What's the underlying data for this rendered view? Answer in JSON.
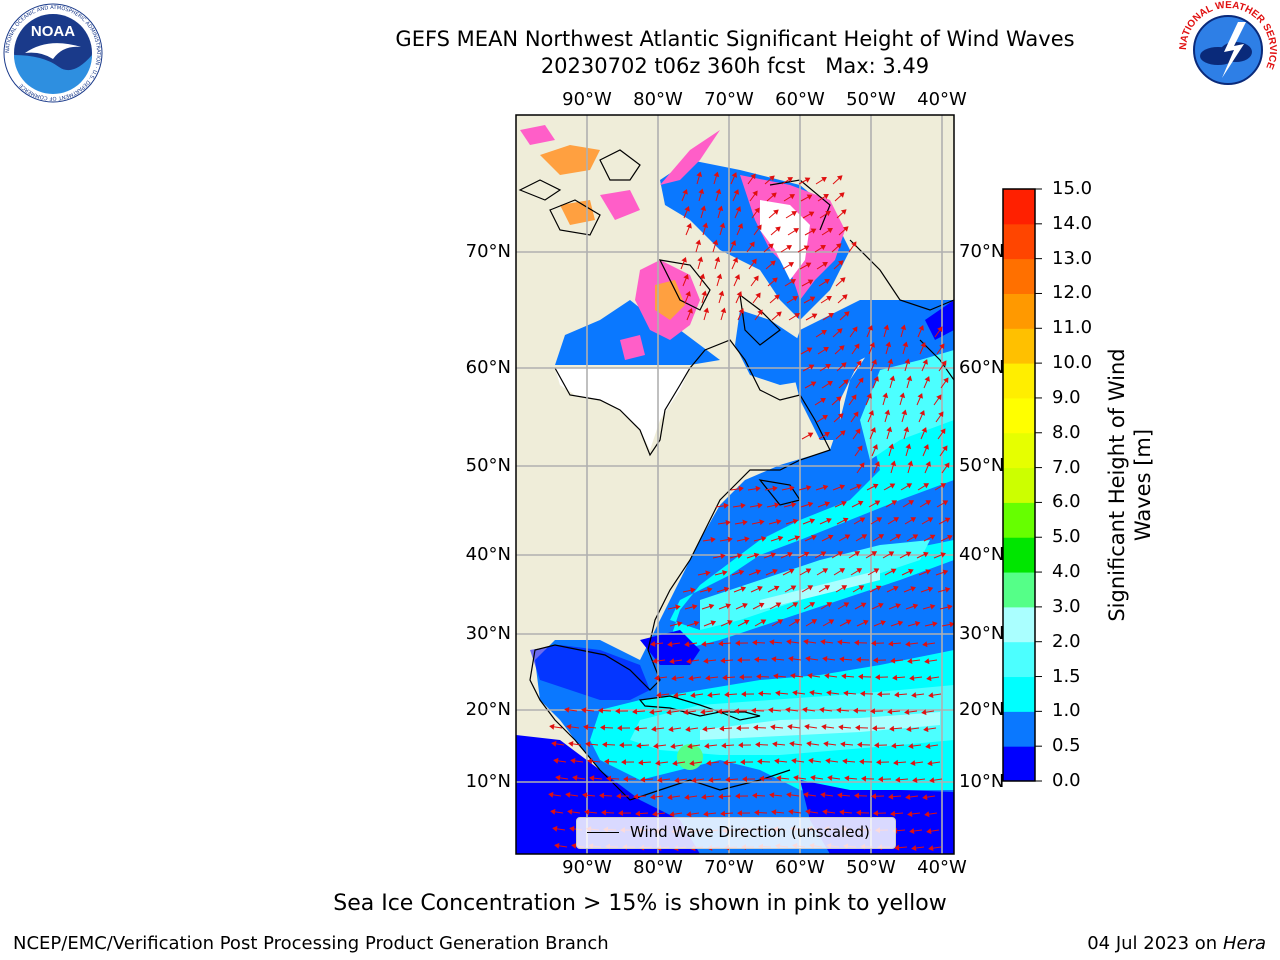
{
  "header": {
    "title_line1": "GEFS MEAN Northwest Atlantic Significant Height of Wind Waves",
    "title_line2": "20230702 t06z 360h fcst   Max: 3.49"
  },
  "logos": {
    "noaa_text": "NOAA",
    "noaa_ring_text": "NATIONAL OCEANIC AND ATMOSPHERIC ADMINISTRATION · U.S. DEPARTMENT OF COMMERCE",
    "nws_ring_text": "NATIONAL WEATHER SERVICE"
  },
  "map": {
    "lon_ticks": [
      "90°W",
      "80°W",
      "70°W",
      "60°W",
      "50°W",
      "40°W"
    ],
    "lat_ticks": [
      "70°N",
      "60°N",
      "50°N",
      "40°N",
      "30°N",
      "20°N",
      "10°N"
    ],
    "legend_label": "Wind Wave Direction (unscaled)",
    "colors": {
      "land": "#efedd9",
      "ice_free_unshaded": "#ffffff",
      "sea_ice_pink": "#ff5ec8",
      "sea_ice_orange": "#ffa040"
    }
  },
  "colorbar": {
    "title": "Significant Height of Wind Waves [m]",
    "labels": [
      "15.0",
      "14.0",
      "13.0",
      "12.0",
      "11.0",
      "10.0",
      "9.0",
      "8.0",
      "7.0",
      "6.0",
      "5.0",
      "4.0",
      "3.0",
      "2.0",
      "1.5",
      "1.0",
      "0.5",
      "0.0"
    ],
    "colors_bottom_to_top": [
      "#0000ff",
      "#0a78ff",
      "#00ffff",
      "#4cffff",
      "#aaffff",
      "#55ff88",
      "#00e600",
      "#66ff00",
      "#ccff00",
      "#e6ff00",
      "#ffff00",
      "#ffee00",
      "#ffc000",
      "#ff9900",
      "#ff7000",
      "#ff4500",
      "#ff2000"
    ]
  },
  "footer": {
    "sea_ice_note": "Sea Ice Concentration > 15% is shown in pink to yellow",
    "credit_left": "NCEP/EMC/Verification Post Processing Product Generation Branch",
    "credit_date": "04 Jul 2023 on ",
    "credit_system": "Hera"
  }
}
